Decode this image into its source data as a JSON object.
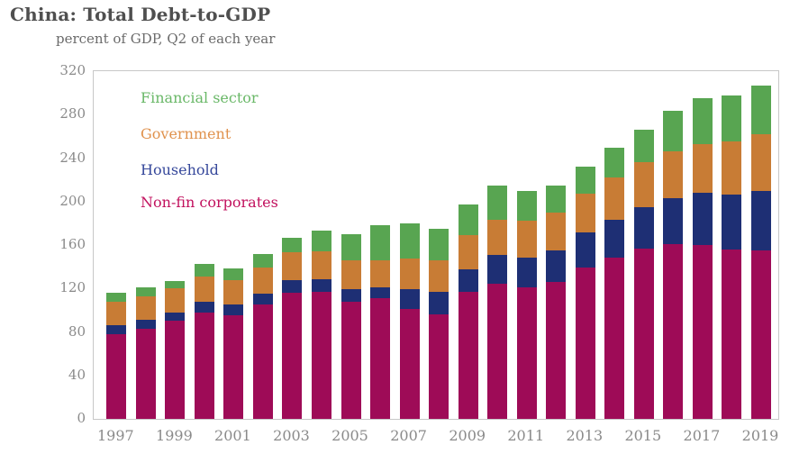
{
  "chart_data": {
    "type": "bar",
    "stacked": true,
    "title": "China: Total Debt-to-GDP",
    "subtitle": "percent of GDP, Q2 of each year",
    "categories": [
      1997,
      1998,
      1999,
      2000,
      2001,
      2002,
      2003,
      2004,
      2005,
      2006,
      2007,
      2008,
      2009,
      2010,
      2011,
      2012,
      2013,
      2014,
      2015,
      2016,
      2017,
      2018,
      2019
    ],
    "x_tick_labels": [
      "1997",
      "1999",
      "2001",
      "2003",
      "2005",
      "2007",
      "2009",
      "2011",
      "2013",
      "2015",
      "2017",
      "2019"
    ],
    "y_ticks": [
      0,
      40,
      80,
      120,
      160,
      200,
      240,
      280,
      320
    ],
    "ylim": [
      0,
      320
    ],
    "grid": false,
    "legend_position": "upper-left-inside",
    "legend_order": [
      "Financial sector",
      "Government",
      "Household",
      "Non-fin corporates"
    ],
    "series": [
      {
        "name": "Non-fin corporates",
        "color": "#9e0b57",
        "legend_color": "#c2115e",
        "values": [
          78,
          83,
          90,
          98,
          95,
          105,
          116.5,
          117,
          108,
          111,
          101,
          96.5,
          117,
          124,
          121,
          126,
          139.5,
          148.5,
          157,
          161,
          160,
          155.5,
          155
        ]
      },
      {
        "name": "Household",
        "color": "#1e2f74",
        "legend_color": "#36489b",
        "values": [
          8,
          8,
          8,
          9.5,
          10,
          10.5,
          11.5,
          11.5,
          11,
          10,
          18.5,
          20.5,
          20.5,
          26.5,
          27.5,
          29,
          32,
          35,
          37.5,
          42,
          48,
          51,
          54.5
        ]
      },
      {
        "name": "Government",
        "color": "#c87c35",
        "legend_color": "#e0924d",
        "values": [
          22,
          21.5,
          22.5,
          23.5,
          22.5,
          24,
          25.5,
          25.5,
          27,
          25,
          28.5,
          29,
          32,
          33,
          34,
          34.5,
          36,
          38.5,
          42,
          43.5,
          45,
          48.5,
          52.5
        ]
      },
      {
        "name": "Financial sector",
        "color": "#58a551",
        "legend_color": "#6ab868",
        "values": [
          8,
          8.5,
          6.5,
          12,
          11,
          12,
          13.5,
          19.5,
          24,
          32,
          32,
          29,
          28,
          31,
          27,
          25,
          25,
          28,
          30,
          37,
          42,
          43,
          44.5
        ]
      }
    ],
    "totals": [
      116,
      121,
      127,
      143,
      138.5,
      151.5,
      167,
      173.5,
      170,
      178,
      180,
      175,
      197.5,
      214.5,
      209.5,
      214.5,
      232.5,
      250,
      266.5,
      283.5,
      295,
      298,
      306.5
    ]
  },
  "layout_text": {
    "y_axis_name": "y-axis (percent of GDP)",
    "x_axis_name": "x-axis (year)"
  }
}
